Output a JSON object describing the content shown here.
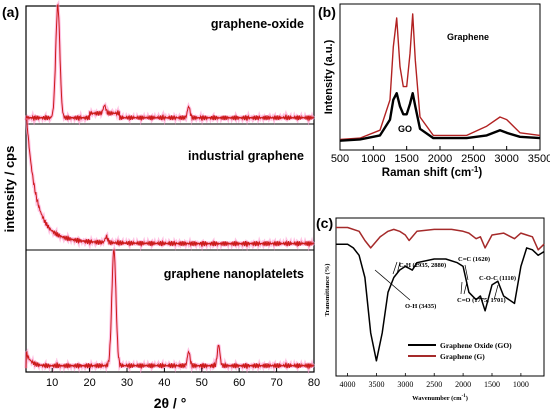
{
  "chart_data": [
    {
      "panel": "(a)",
      "type": "line",
      "xlabel": "2θ / °",
      "ylabel": "intensity / cps",
      "xlim": [
        3,
        80
      ],
      "x_ticks": [
        "10",
        "20",
        "30",
        "40",
        "50",
        "60",
        "70",
        "80"
      ],
      "color": "#cc1a1a",
      "subplots": [
        {
          "label": "graphene-oxide",
          "peaks": [
            {
              "x": 11.5,
              "y": 1.0
            },
            {
              "x": 24,
              "y": 0.07
            },
            {
              "x": 46.5,
              "y": 0.1
            }
          ]
        },
        {
          "label": "industrial graphene",
          "peaks": [
            {
              "x": 4,
              "y": 0.95
            },
            {
              "x": 24.5,
              "y": 0.05
            }
          ]
        },
        {
          "label": "graphene nanoplatelets",
          "peaks": [
            {
              "x": 26.5,
              "y": 1.0
            },
            {
              "x": 46.5,
              "y": 0.12
            },
            {
              "x": 54.5,
              "y": 0.18
            }
          ]
        }
      ]
    },
    {
      "panel": "(b)",
      "type": "line",
      "xlabel": "Raman shift (cm",
      "xlabel_sup": "-1",
      "xlabel_end": ")",
      "ylabel": "Intensity (a.u.)",
      "xlim": [
        500,
        3500
      ],
      "ylim": [
        0,
        1
      ],
      "x_ticks": [
        "500",
        "1000",
        "1500",
        "2000",
        "2500",
        "3000",
        "3500"
      ],
      "series": [
        {
          "name": "Graphene",
          "color": "#b22222",
          "x": [
            500,
            800,
            1100,
            1250,
            1300,
            1350,
            1400,
            1450,
            1500,
            1550,
            1590,
            1630,
            1700,
            1900,
            2400,
            2700,
            2900,
            3000,
            3200,
            3500
          ],
          "y": [
            0.05,
            0.06,
            0.12,
            0.35,
            0.75,
            0.97,
            0.6,
            0.45,
            0.45,
            0.7,
            1.0,
            0.65,
            0.22,
            0.08,
            0.08,
            0.15,
            0.22,
            0.2,
            0.1,
            0.08
          ]
        },
        {
          "name": "GO",
          "color": "#000000",
          "x": [
            500,
            800,
            1100,
            1250,
            1300,
            1350,
            1400,
            1450,
            1500,
            1550,
            1590,
            1630,
            1700,
            1900,
            2400,
            2700,
            2900,
            3000,
            3200,
            3500
          ],
          "y": [
            0.04,
            0.05,
            0.08,
            0.2,
            0.35,
            0.4,
            0.3,
            0.24,
            0.24,
            0.32,
            0.4,
            0.3,
            0.13,
            0.06,
            0.06,
            0.08,
            0.12,
            0.1,
            0.07,
            0.06
          ]
        }
      ]
    },
    {
      "panel": "(c)",
      "type": "line",
      "xlabel": "Wavenumber  (cm",
      "xlabel_sup": "-1",
      "xlabel_end": ")",
      "ylabel": "Transmittance (%)",
      "xlim": [
        4200,
        600
      ],
      "x_ticks": [
        "4000",
        "3500",
        "3000",
        "2500",
        "2000",
        "1500",
        "1000"
      ],
      "annotations": [
        "C-H (2935, 2880)",
        "C=C (1620)",
        "C-O-C (1110)",
        "O-H (3435)",
        "C=O (1775, 1701)"
      ],
      "legend": [
        {
          "name": "Graphene Oxide (GO)",
          "color": "#000000"
        },
        {
          "name": "Graphene (G)",
          "color": "#a52a2a"
        }
      ],
      "series": [
        {
          "name": "Graphene Oxide (GO)",
          "color": "#000000",
          "x": [
            4200,
            4000,
            3900,
            3800,
            3700,
            3600,
            3500,
            3400,
            3300,
            3200,
            3100,
            3000,
            2935,
            2880,
            2800,
            2500,
            2300,
            2100,
            2000,
            1900,
            1775,
            1701,
            1620,
            1500,
            1400,
            1300,
            1110,
            1000,
            900,
            800,
            700,
            600
          ],
          "y": [
            88,
            88,
            86,
            82,
            70,
            40,
            25,
            40,
            62,
            70,
            74,
            76,
            75,
            74,
            78,
            80,
            80,
            78,
            76,
            62,
            58,
            60,
            52,
            66,
            68,
            60,
            56,
            76,
            86,
            85,
            82,
            84
          ]
        },
        {
          "name": "Graphene (G)",
          "color": "#a52a2a",
          "x": [
            4200,
            4000,
            3800,
            3700,
            3600,
            3435,
            3300,
            3200,
            3100,
            3000,
            2935,
            2880,
            2800,
            2500,
            2200,
            2000,
            1900,
            1775,
            1701,
            1620,
            1500,
            1300,
            1110,
            1000,
            900,
            800,
            700,
            600
          ],
          "y": [
            97,
            97,
            95,
            90,
            86,
            92,
            95,
            96,
            95,
            93,
            90,
            92,
            95,
            96,
            96,
            95,
            94,
            91,
            92,
            86,
            93,
            94,
            91,
            94,
            93,
            92,
            85,
            88
          ]
        }
      ]
    }
  ]
}
